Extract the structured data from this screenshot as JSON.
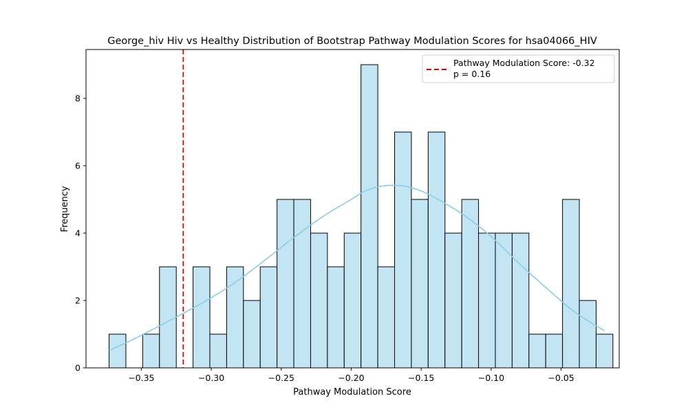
{
  "chart_data": {
    "type": "bar",
    "title": "George_hiv Hiv vs Healthy Distribution of Bootstrap Pathway Modulation Scores for hsa04066_HIV",
    "xlabel": "Pathway Modulation Score",
    "ylabel": "Frequency",
    "xlim": [
      -0.3895,
      -0.0085
    ],
    "ylim": [
      0,
      9.45
    ],
    "x_ticks": [
      -0.35,
      -0.3,
      -0.25,
      -0.2,
      -0.15,
      -0.1,
      -0.05
    ],
    "x_tick_labels": [
      "−0.35",
      "−0.30",
      "−0.25",
      "−0.20",
      "−0.15",
      "−0.10",
      "−0.05"
    ],
    "y_ticks": [
      0,
      2,
      4,
      6,
      8
    ],
    "y_tick_labels": [
      "0",
      "2",
      "4",
      "6",
      "8"
    ],
    "grid": false,
    "bin_start": -0.373,
    "bin_width": 0.012,
    "bin_counts": [
      1,
      0,
      1,
      3,
      0,
      3,
      1,
      3,
      2,
      3,
      5,
      5,
      4,
      3,
      4,
      9,
      3,
      7,
      5,
      7,
      4,
      5,
      4,
      4,
      4,
      1,
      1,
      5,
      2,
      1
    ],
    "bar_fill": "#c3e4f3",
    "bar_edge": "#000000",
    "kde": {
      "color": "#87ceeb",
      "x": [
        -0.373,
        -0.36,
        -0.34,
        -0.32,
        -0.3,
        -0.28,
        -0.26,
        -0.24,
        -0.22,
        -0.2,
        -0.19,
        -0.18,
        -0.17,
        -0.16,
        -0.15,
        -0.14,
        -0.12,
        -0.1,
        -0.08,
        -0.06,
        -0.04,
        -0.019
      ],
      "y": [
        0.52,
        0.76,
        1.18,
        1.62,
        2.08,
        2.62,
        3.25,
        3.9,
        4.5,
        5.0,
        5.25,
        5.38,
        5.42,
        5.38,
        5.25,
        5.05,
        4.55,
        3.9,
        3.1,
        2.35,
        1.65,
        1.1
      ]
    },
    "reference_line": {
      "x": -0.32,
      "color": "#e00000",
      "style": "dashed"
    },
    "legend": {
      "placement": "top-right",
      "line1": "Pathway Modulation Score: -0.32",
      "line2": "p = 0.16"
    }
  }
}
